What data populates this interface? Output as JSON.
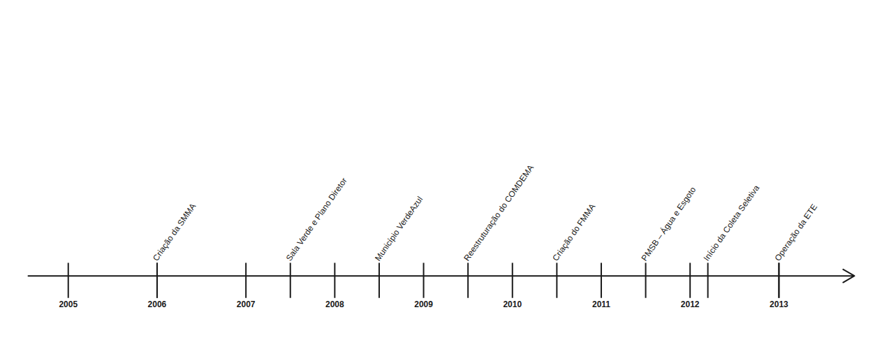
{
  "chart_data": {
    "type": "timeline",
    "annotations": [
      {
        "x": 2006,
        "text": "Criação da SMMA"
      },
      {
        "x": 2007.5,
        "text": "Sala Verde e Plano Diretor"
      },
      {
        "x": 2008.5,
        "text": "Município VerdeAzul"
      },
      {
        "x": 2009.5,
        "text": "Reestruturação do COMDEMA"
      },
      {
        "x": 2010.5,
        "text": "Criação do FMMA"
      },
      {
        "x": 2011.5,
        "text": "PMSB – Água e Esgoto"
      },
      {
        "x": 2012.2,
        "text": "Início da Coleta Seletiva"
      },
      {
        "x": 2013.0,
        "text": "Operação da ETE"
      }
    ],
    "xlim": [
      2004.55,
      2013.85
    ],
    "xticks": [
      2005,
      2006,
      2007,
      2008,
      2009,
      2010,
      2011,
      2012,
      2013
    ],
    "tick_labels": "x",
    "color": "#1a1a1a"
  }
}
